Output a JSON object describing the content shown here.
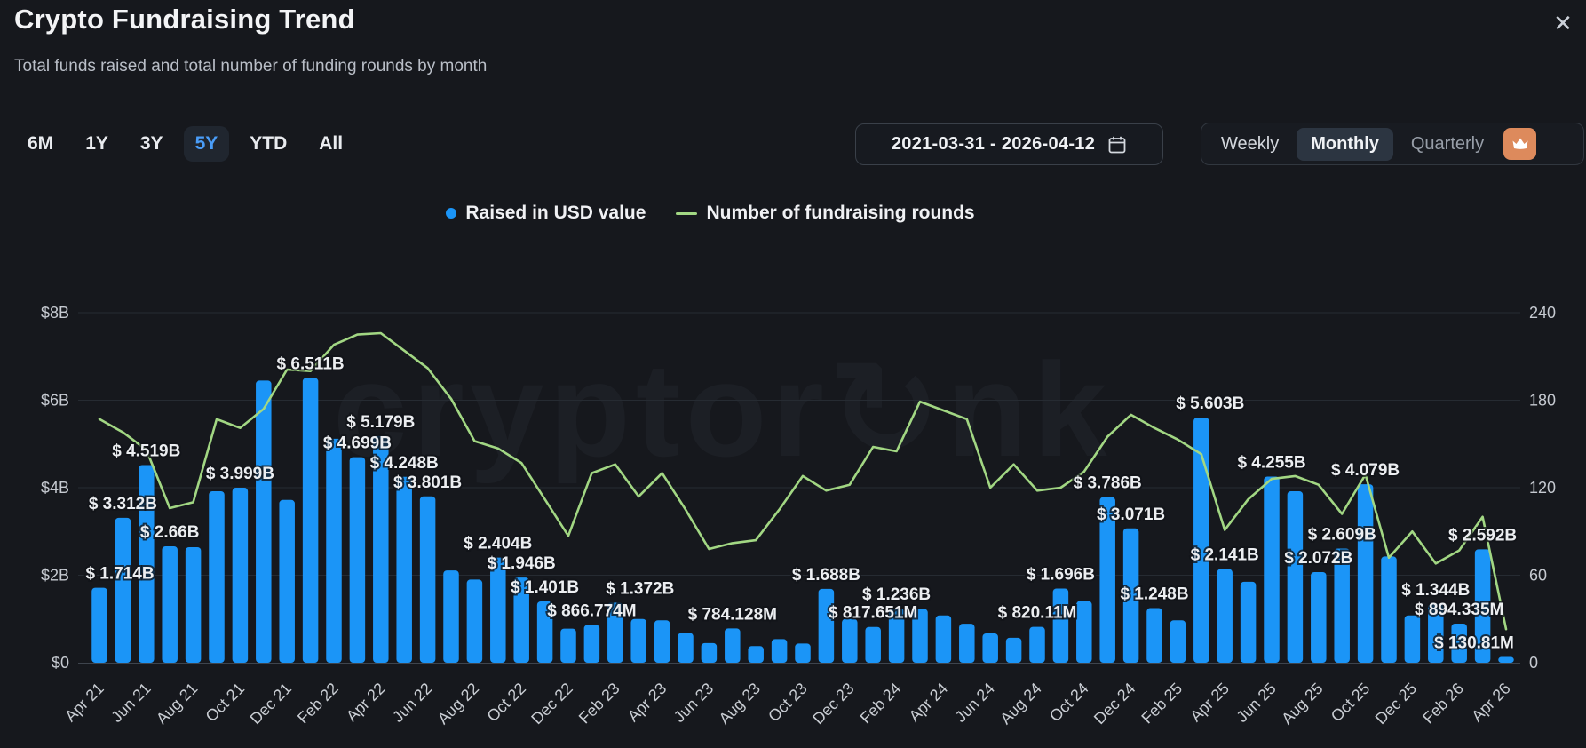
{
  "header": {
    "title": "Crypto Fundraising Trend",
    "subtitle": "Total funds raised and total number of funding rounds by month",
    "close_glyph": "✕"
  },
  "controls": {
    "ranges": [
      "6M",
      "1Y",
      "3Y",
      "5Y",
      "YTD",
      "All"
    ],
    "active_range": "5Y",
    "date_range": "2021-03-31 - 2026-04-12",
    "granularity_options": [
      "Weekly",
      "Monthly",
      "Quarterly"
    ],
    "active_granularity": "Monthly",
    "locked_granularity": "Quarterly"
  },
  "legend": [
    {
      "label": "Raised in USD value",
      "color": "#1b95f7",
      "marker": "dot"
    },
    {
      "label": "Number of fundraising rounds",
      "color": "#a2d783",
      "marker": "line"
    }
  ],
  "watermark": {
    "text": "cryptor↻nk"
  },
  "colors": {
    "bar": "#1b95f7",
    "line": "#a2d783",
    "accent_active": "#4a9df8",
    "crown_badge": "#dd8a5c",
    "background": "#16181d"
  },
  "chart_data": {
    "type": "bar",
    "combo": "bar+line",
    "months": [
      "Apr 21",
      "May 21",
      "Jun 21",
      "Jul 21",
      "Aug 21",
      "Sep 21",
      "Oct 21",
      "Nov 21",
      "Dec 21",
      "Jan 22",
      "Feb 22",
      "Mar 22",
      "Apr 22",
      "May 22",
      "Jun 22",
      "Jul 22",
      "Aug 22",
      "Sep 22",
      "Oct 22",
      "Nov 22",
      "Dec 22",
      "Jan 23",
      "Feb 23",
      "Mar 23",
      "Apr 23",
      "May 23",
      "Jun 23",
      "Jul 23",
      "Aug 23",
      "Sep 23",
      "Oct 23",
      "Nov 23",
      "Dec 23",
      "Jan 24",
      "Feb 24",
      "Mar 24",
      "Apr 24",
      "May 24",
      "Jun 24",
      "Jul 24",
      "Aug 24",
      "Sep 24",
      "Oct 24",
      "Nov 24",
      "Dec 24",
      "Jan 25",
      "Feb 25",
      "Mar 25",
      "Apr 25",
      "May 25",
      "Jun 25",
      "Jul 25",
      "Aug 25",
      "Sep 25",
      "Oct 25",
      "Nov 25",
      "Dec 25",
      "Jan 26",
      "Feb 26",
      "Mar 26",
      "Apr 26"
    ],
    "x_tick_labels": [
      "Apr 21",
      "Jun 21",
      "Aug 21",
      "Oct 21",
      "Dec 21",
      "Feb 22",
      "Apr 22",
      "Jun 22",
      "Aug 22",
      "Oct 22",
      "Dec 22",
      "Feb 23",
      "Apr 23",
      "Jun 23",
      "Aug 23",
      "Oct 23",
      "Dec 23",
      "Feb 24",
      "Apr 24",
      "Jun 24",
      "Aug 24",
      "Oct 24",
      "Dec 24",
      "Feb 25",
      "Apr 25",
      "Jun 25",
      "Aug 25",
      "Oct 25",
      "Dec 25",
      "Feb 26",
      "Apr 26"
    ],
    "series": [
      {
        "name": "Raised in USD value",
        "type": "bar",
        "unit": "USD billions",
        "values": [
          1.714,
          3.312,
          4.519,
          2.66,
          2.64,
          3.92,
          3.999,
          6.45,
          3.72,
          6.511,
          5.12,
          4.699,
          5.179,
          4.248,
          3.801,
          2.11,
          1.9,
          2.404,
          1.946,
          1.401,
          0.78,
          0.866774,
          1.372,
          1.0,
          0.97,
          0.68,
          0.45,
          0.784128,
          0.38,
          0.54,
          0.44,
          1.688,
          1.0,
          0.817651,
          1.236,
          1.23,
          1.08,
          0.89,
          0.67,
          0.57,
          0.82011,
          1.696,
          1.41,
          3.786,
          3.071,
          1.248,
          0.97,
          5.603,
          2.141,
          1.85,
          4.255,
          3.92,
          2.072,
          2.609,
          4.079,
          2.43,
          1.08,
          1.344,
          0.894335,
          2.592,
          0.13081
        ],
        "data_labels": [
          "$ 1.714B",
          "$ 3.312B",
          "$ 4.519B",
          "$ 2.66B",
          null,
          null,
          "$ 3.999B",
          null,
          null,
          "$ 6.511B",
          null,
          "$ 4.699B",
          "$ 5.179B",
          "$ 4.248B",
          "$ 3.801B",
          null,
          null,
          "$ 2.404B",
          "$ 1.946B",
          "$ 1.401B",
          null,
          "$ 866.774M",
          "$ 1.372B",
          null,
          null,
          null,
          null,
          "$ 784.128M",
          null,
          null,
          null,
          "$ 1.688B",
          null,
          "$ 817.651M",
          "$ 1.236B",
          null,
          null,
          null,
          null,
          null,
          "$ 820.11M",
          "$ 1.696B",
          null,
          "$ 3.786B",
          "$ 3.071B",
          "$ 1.248B",
          null,
          "$ 5.603B",
          "$ 2.141B",
          null,
          "$ 4.255B",
          null,
          "$ 2.072B",
          "$ 2.609B",
          "$ 4.079B",
          null,
          null,
          "$ 1.344B",
          "$ 894.335M",
          "$ 2.592B",
          "$ 130.81M"
        ],
        "label_offsets": {
          "0": [
            23,
            0
          ],
          "22": [
            28,
            0
          ],
          "47": [
            10,
            0
          ],
          "60": [
            -36,
            0
          ]
        }
      },
      {
        "name": "Number of fundraising rounds",
        "type": "line",
        "unit": "rounds",
        "values": [
          167,
          158,
          146,
          106,
          110,
          167,
          161,
          174,
          201,
          200,
          218,
          225,
          226,
          214,
          202,
          181,
          152,
          147,
          137,
          112,
          87,
          130,
          136,
          114,
          130,
          105,
          78,
          82,
          84,
          105,
          128,
          118,
          122,
          148,
          145,
          179,
          173,
          167,
          120,
          136,
          118,
          120,
          131,
          155,
          170,
          161,
          153,
          143,
          91,
          112,
          126,
          128,
          122,
          102,
          129,
          72,
          90,
          68,
          77,
          100,
          23
        ]
      }
    ],
    "left_axis": {
      "title": "",
      "tick_labels": [
        "$0",
        "$2B",
        "$4B",
        "$6B",
        "$8B"
      ],
      "tick_values": [
        0,
        2,
        4,
        6,
        8
      ],
      "min": 0,
      "max": 8
    },
    "right_axis": {
      "title": "",
      "tick_labels": [
        "0",
        "60",
        "120",
        "180",
        "240"
      ],
      "tick_values": [
        0,
        60,
        120,
        180,
        240
      ],
      "min": 0,
      "max": 240
    },
    "grid": "horizontal",
    "legend_position": "top-center"
  }
}
